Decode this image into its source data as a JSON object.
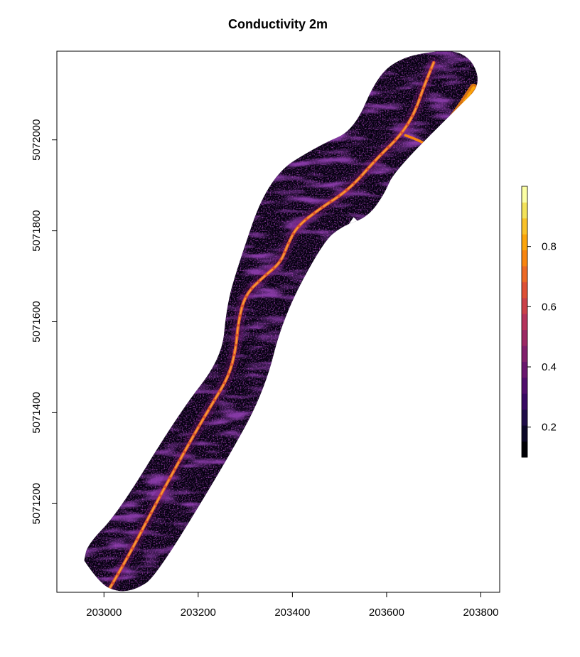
{
  "chart_data": {
    "type": "heatmap",
    "title": "Conductivity 2m",
    "xlabel": "",
    "ylabel": "",
    "xlim": [
      202900,
      203840
    ],
    "ylim": [
      5071005,
      5072195
    ],
    "x_ticks": [
      203000,
      203200,
      203400,
      203600,
      203800
    ],
    "x_tick_labels": [
      "203000",
      "203200",
      "203400",
      "203600",
      "203800"
    ],
    "y_ticks": [
      5071200,
      5071400,
      5071600,
      5071800,
      5072000
    ],
    "y_tick_labels": [
      "5071200",
      "5071400",
      "5071600",
      "5071800",
      "5072000"
    ],
    "grid": false,
    "legend_placement": "right",
    "colorbar": {
      "range": [
        0.1,
        1.0
      ],
      "ticks": [
        0.2,
        0.4,
        0.6,
        0.8
      ],
      "tick_labels": [
        "0.2",
        "0.4",
        "0.6",
        "0.8"
      ],
      "colors": [
        "#000004",
        "#0b0726",
        "#1f0c48",
        "#380962",
        "#510e6c",
        "#6a176e",
        "#82206c",
        "#9c2964",
        "#b5345c",
        "#cb4149",
        "#de5035",
        "#ed6925",
        "#f8850f",
        "#fca50a",
        "#fac228",
        "#f3e35a",
        "#fcffa4"
      ]
    },
    "survey_boundary": [
      [
        202958,
        5071075
      ],
      [
        202990,
        5071025
      ],
      [
        203030,
        5071005
      ],
      [
        203070,
        5071012
      ],
      [
        203110,
        5071040
      ],
      [
        203255,
        5071285
      ],
      [
        203340,
        5071445
      ],
      [
        203380,
        5071610
      ],
      [
        203465,
        5071775
      ],
      [
        203505,
        5071810
      ],
      [
        203560,
        5071830
      ],
      [
        203595,
        5071880
      ],
      [
        203615,
        5071930
      ],
      [
        203760,
        5072080
      ],
      [
        203790,
        5072110
      ],
      [
        203795,
        5072140
      ],
      [
        203780,
        5072175
      ],
      [
        203750,
        5072195
      ],
      [
        203700,
        5072195
      ],
      [
        203630,
        5072180
      ],
      [
        203580,
        5072140
      ],
      [
        203530,
        5072020
      ],
      [
        203460,
        5071990
      ],
      [
        203350,
        5071920
      ],
      [
        203280,
        5071710
      ],
      [
        203260,
        5071630
      ],
      [
        203250,
        5071520
      ],
      [
        203160,
        5071400
      ],
      [
        203030,
        5071180
      ],
      [
        202965,
        5071110
      ]
    ],
    "channel": [
      [
        203010,
        5071010
      ],
      [
        203050,
        5071080
      ],
      [
        203110,
        5071200
      ],
      [
        203190,
        5071350
      ],
      [
        203230,
        5071420
      ],
      [
        203265,
        5071480
      ],
      [
        203280,
        5071540
      ],
      [
        203285,
        5071600
      ],
      [
        203300,
        5071660
      ],
      [
        203340,
        5071700
      ],
      [
        203375,
        5071730
      ],
      [
        203390,
        5071770
      ],
      [
        203410,
        5071810
      ],
      [
        203460,
        5071850
      ],
      [
        203520,
        5071890
      ],
      [
        203580,
        5071960
      ],
      [
        203630,
        5072010
      ],
      [
        203660,
        5072060
      ],
      [
        203680,
        5072120
      ],
      [
        203700,
        5072170
      ]
    ],
    "tributary": [
      [
        203640,
        5072010
      ],
      [
        203680,
        5071995
      ],
      [
        203700,
        5071975
      ]
    ],
    "hot_zone": [
      [
        203720,
        5072020
      ],
      [
        203750,
        5072060
      ],
      [
        203785,
        5072115
      ]
    ],
    "no_data_patch": [
      [
        203510,
        5071800
      ],
      [
        203530,
        5071830
      ],
      [
        203545,
        5071815
      ]
    ]
  }
}
